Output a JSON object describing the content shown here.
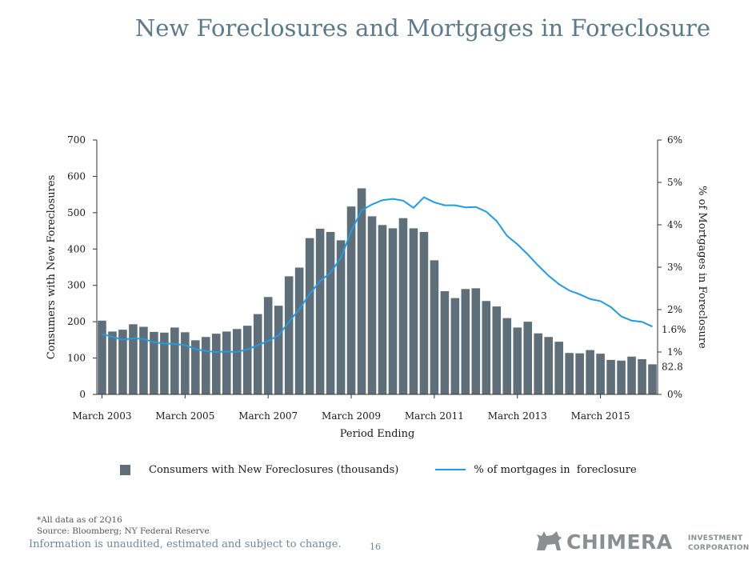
{
  "page": {
    "title": "New Foreclosures and Mortgages in Foreclosure",
    "footnote": "*All data as of 2Q16",
    "source": "Source: Bloomberg; NY Federal Reserve",
    "disclaimer": "Information is unaudited, estimated and subject to change.",
    "page_number": "16",
    "logo": {
      "name": "CHIMERA",
      "sub_line1": "INVESTMENT",
      "sub_line2": "CORPORATION",
      "icon": "chimera-creature-icon"
    }
  },
  "chart_data": {
    "type": "bar",
    "title": "",
    "xlabel": "Period Ending",
    "ylabel": "Consumers with New Foreclosures",
    "y2label": "% of Mortgages in Foreclosure",
    "ylim": [
      0,
      700
    ],
    "y2lim": [
      0,
      6
    ],
    "yticks": [
      "0",
      "100",
      "200",
      "300",
      "400",
      "500",
      "600",
      "700"
    ],
    "y2ticks": [
      "0%",
      "1%",
      "2%",
      "3%",
      "4%",
      "5%",
      "6%"
    ],
    "xtick_labels": [
      "March 2003",
      "March 2005",
      "March 2007",
      "March 2009",
      "March 2011",
      "March 2013",
      "March 2015"
    ],
    "grid": false,
    "legend_position": "bottom",
    "colors": {
      "bars": "#5f6f7a",
      "line": "#1f9ce8"
    },
    "categories": [
      "1Q03",
      "2Q03",
      "3Q03",
      "4Q03",
      "1Q04",
      "2Q04",
      "3Q04",
      "4Q04",
      "1Q05",
      "2Q05",
      "3Q05",
      "4Q05",
      "1Q06",
      "2Q06",
      "3Q06",
      "4Q06",
      "1Q07",
      "2Q07",
      "3Q07",
      "4Q07",
      "1Q08",
      "2Q08",
      "3Q08",
      "4Q08",
      "1Q09",
      "2Q09",
      "3Q09",
      "4Q09",
      "1Q10",
      "2Q10",
      "3Q10",
      "4Q10",
      "1Q11",
      "2Q11",
      "3Q11",
      "4Q11",
      "1Q12",
      "2Q12",
      "3Q12",
      "4Q12",
      "1Q13",
      "2Q13",
      "3Q13",
      "4Q13",
      "1Q14",
      "2Q14",
      "3Q14",
      "4Q14",
      "1Q15",
      "2Q15",
      "3Q15",
      "4Q15",
      "1Q16",
      "2Q16"
    ],
    "series": [
      {
        "name": "Consumers with New Foreclosures (thousands)",
        "type": "bar",
        "axis": "left",
        "values": [
          203,
          173,
          178,
          193,
          186,
          172,
          170,
          184,
          171,
          149,
          158,
          167,
          173,
          180,
          189,
          221,
          268,
          244,
          325,
          349,
          430,
          456,
          447,
          424,
          517,
          567,
          490,
          466,
          457,
          485,
          457,
          447,
          369,
          284,
          265,
          290,
          292,
          257,
          242,
          210,
          184,
          200,
          168,
          158,
          145,
          114,
          113,
          122,
          112,
          95,
          93,
          104,
          97,
          82.8
        ]
      },
      {
        "name": "% of mortgages in  foreclosure",
        "type": "line",
        "axis": "right",
        "values": [
          1.42,
          1.36,
          1.29,
          1.32,
          1.31,
          1.23,
          1.2,
          1.19,
          1.16,
          1.07,
          1.02,
          1.0,
          1.01,
          1.0,
          1.06,
          1.16,
          1.26,
          1.39,
          1.71,
          2.01,
          2.37,
          2.67,
          2.87,
          3.22,
          3.85,
          4.34,
          4.48,
          4.58,
          4.61,
          4.57,
          4.4,
          4.65,
          4.53,
          4.46,
          4.46,
          4.41,
          4.42,
          4.31,
          4.09,
          3.74,
          3.54,
          3.3,
          3.04,
          2.8,
          2.6,
          2.45,
          2.36,
          2.25,
          2.2,
          2.06,
          1.84,
          1.74,
          1.71,
          1.6
        ]
      }
    ],
    "annotations": [
      "82.8",
      "1.6%"
    ]
  }
}
